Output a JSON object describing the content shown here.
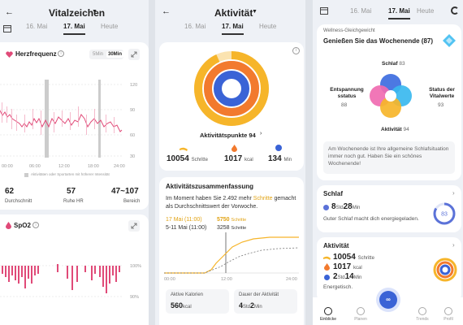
{
  "screen1": {
    "title": "Vitalzeichen",
    "tabs": [
      "16. Mai",
      "17. Mai",
      "Heute"
    ],
    "heart": {
      "title": "Herzfrequenz",
      "toggle": [
        "5Min",
        "30Min"
      ],
      "y_ticks": [
        "120",
        "90",
        "60",
        "30"
      ],
      "x_ticks": [
        "00:00",
        "06:00",
        "12:00",
        "18:00",
        "24:00"
      ],
      "legend": "Aktivitäten oder Sportarten mit höherer Intensität",
      "stats": [
        {
          "value": "62",
          "label": "Durchschnitt"
        },
        {
          "value": "57",
          "label": "Ruhe HR"
        },
        {
          "value": "47~107",
          "label": "Bereich"
        }
      ]
    },
    "spo2": {
      "title": "SpO2",
      "y_ticks": [
        "100%",
        "90%"
      ]
    }
  },
  "screen2": {
    "title": "Aktivität",
    "tabs": [
      "16. Mai",
      "17. Mai",
      "Heute"
    ],
    "points_label": "Aktivitätspunkte 94",
    "metrics": [
      {
        "value": "10054",
        "unit": "Schritte"
      },
      {
        "value": "1017",
        "unit": "kcal"
      },
      {
        "value": "134",
        "unit": "Min"
      }
    ],
    "summary_title": "Aktivitätszusammenfassung",
    "summary_text_1": "Im Moment haben Sie 2.492 mehr",
    "summary_highlight": "Schritte",
    "summary_text_2": "gemacht als Durchschnittswert der Vorwoche.",
    "legend_today_date": "17 Mai (11:00)",
    "legend_today_value": "5750",
    "legend_today_unit": "Schritte",
    "legend_avg_date": "5-11 Mai (11:00)",
    "legend_avg_value": "3258",
    "legend_avg_unit": "Schritte",
    "chart_x_ticks": [
      "00:00",
      "12:00",
      "24:00"
    ],
    "tiles": [
      {
        "label": "Aktive Kalorien",
        "value": "560",
        "unit": "kcal"
      },
      {
        "label": "Dauer der Aktivität",
        "value_h": "4",
        "unit_h": "Std",
        "value_m": "2",
        "unit_m": "Min"
      }
    ]
  },
  "screen3": {
    "tabs": [
      "16. Mai",
      "17. Mai",
      "Heute"
    ],
    "wellness_label": "Wellness-Gleichgewicht",
    "wellness_title": "Genießen Sie das Wochenende (87)",
    "petals": [
      {
        "name": "Schlaf",
        "value": "83",
        "color": "#3d6de0"
      },
      {
        "name": "Entspannung sstatus",
        "value": "88",
        "color": "#f06bb1"
      },
      {
        "name": "Status der Vitalwerte",
        "value": "93",
        "color": "#39b9ef"
      },
      {
        "name": "Aktivität",
        "value": "94",
        "color": "#f6b52a"
      }
    ],
    "wellness_note": "Am Wochenende ist Ihre allgemeine Schlafsituation immer noch gut. Haben Sie ein schönes Wochenende!",
    "sleep": {
      "title": "Schlaf",
      "hours": "8",
      "hours_unit": "Std",
      "mins": "28",
      "mins_unit": "Min",
      "text": "Guter Schlaf macht dich energiegeladen.",
      "score": "83"
    },
    "activity": {
      "title": "Aktivität",
      "steps": "10054",
      "steps_unit": "Schritte",
      "kcal": "1017",
      "kcal_unit": "kcal",
      "hours": "2",
      "hours_unit": "Std",
      "mins": "14",
      "mins_unit": "Min",
      "text": "Energetisch."
    },
    "nav": [
      "Einblicke",
      "Planen",
      "Trends",
      "Profil"
    ]
  },
  "colors": {
    "heart": "#e04a78",
    "steps": "#f6b52a",
    "kcal": "#f27a2e",
    "minutes": "#3a63d6",
    "sleep_ring": "#5b72d8"
  }
}
